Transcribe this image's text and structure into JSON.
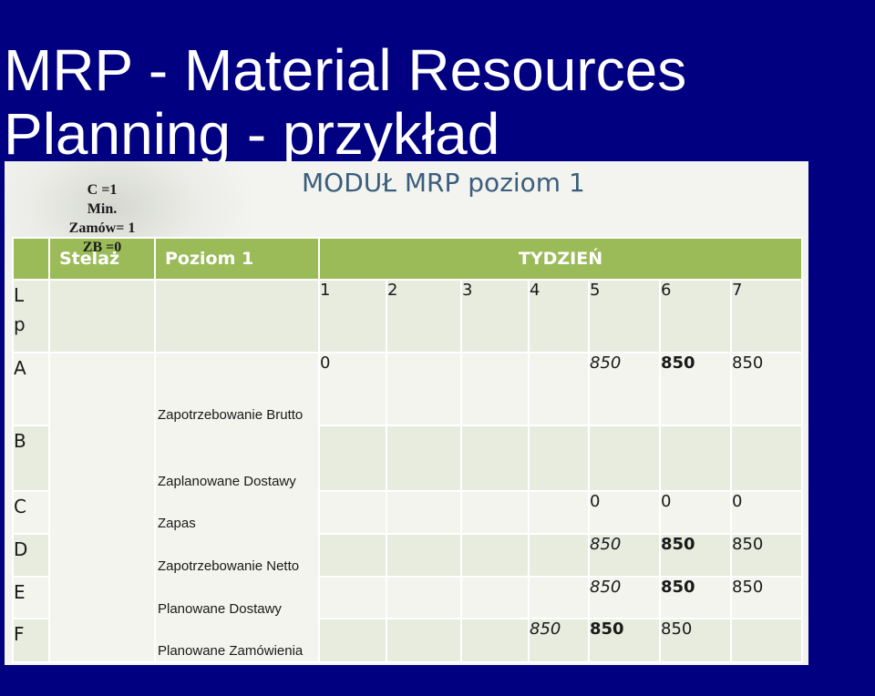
{
  "slide": {
    "title_line1": "MRP - Material Resources",
    "title_line2": "Planning - przykład"
  },
  "module": {
    "title": "MODUŁ MRP poziom 1",
    "header": {
      "stelaz": "Stelaż",
      "poziom": "Poziom 1",
      "tydzien": "TYDZIEŃ"
    },
    "lp_label": "L p",
    "lp_line1": "L",
    "lp_line2": "p",
    "weeks": [
      "1",
      "2",
      "3",
      "4",
      "5",
      "6",
      "7"
    ],
    "params": {
      "line1": "C =1",
      "line2": "Min.",
      "line3": "Zamów= 1",
      "line4": "ZB =0"
    },
    "labels": {
      "gross": "Zapotrzebowanie Brutto",
      "scheduled": "Zaplanowane Dostawy",
      "stock": "Zapas",
      "net": "Zapotrzebowanie Netto",
      "planned_receipts": "Planowane Dostawy",
      "planned_orders": "Planowane Zamówienia"
    },
    "rows": [
      {
        "lp": "A",
        "cells": [
          "0",
          "",
          "",
          "",
          "850",
          "850",
          "850"
        ]
      },
      {
        "lp": "B",
        "cells": [
          "",
          "",
          "",
          "",
          "",
          "",
          ""
        ]
      },
      {
        "lp": "C",
        "cells": [
          "",
          "",
          "",
          "",
          "0",
          "0",
          "0"
        ]
      },
      {
        "lp": "D",
        "cells": [
          "",
          "",
          "",
          "",
          "850",
          "850",
          "850"
        ]
      },
      {
        "lp": "E",
        "cells": [
          "",
          "",
          "",
          "",
          "850",
          "850",
          "850"
        ]
      },
      {
        "lp": "F",
        "cells": [
          "",
          "",
          "",
          "850",
          "850",
          "850",
          ""
        ]
      }
    ]
  },
  "colors": {
    "background": "#000080",
    "header_green": "#9bbb59",
    "title_blue": "#3b5e7c"
  }
}
